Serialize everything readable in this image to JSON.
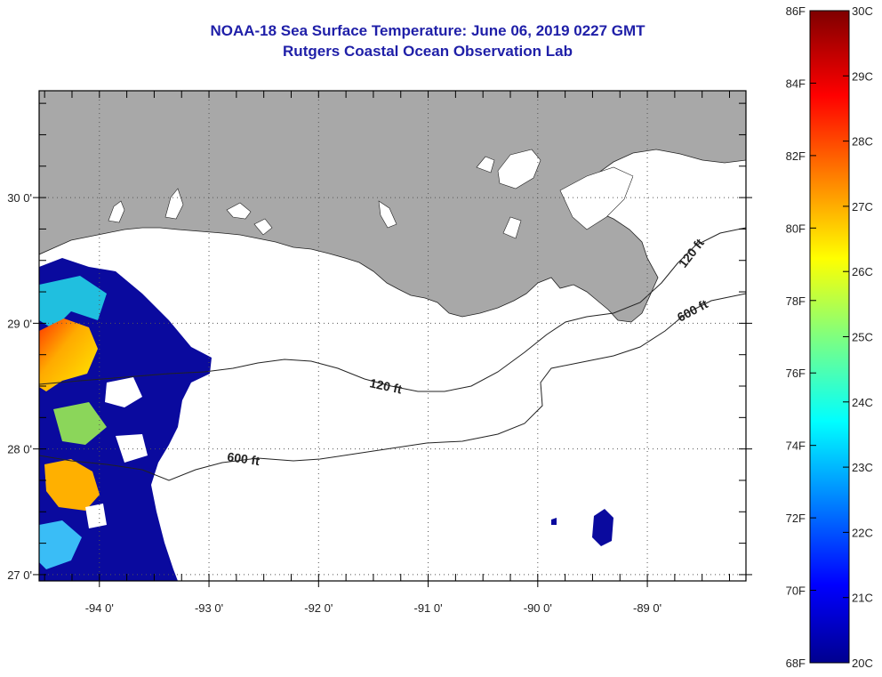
{
  "title": "NOAA-18 Sea Surface Temperature:  June 06, 2019 0227 GMT",
  "subtitle": "Rutgers Coastal Ocean Observation Lab",
  "map": {
    "lat_labels": [
      {
        "text": "30 0'",
        "lat": 30
      },
      {
        "text": "29 0'",
        "lat": 29
      },
      {
        "text": "28 0'",
        "lat": 28
      },
      {
        "text": "27 0'",
        "lat": 27
      }
    ],
    "lon_labels": [
      {
        "text": "-94 0'",
        "lon": -94
      },
      {
        "text": "-93 0'",
        "lon": -93
      },
      {
        "text": "-92 0'",
        "lon": -92
      },
      {
        "text": "-91 0'",
        "lon": -91
      },
      {
        "text": "-90 0'",
        "lon": -90
      },
      {
        "text": "-89 0'",
        "lon": -89
      }
    ],
    "lon_range": [
      -94.55,
      -88.1
    ],
    "lat_range": [
      26.95,
      30.85
    ],
    "grid": "dotted",
    "contours": [
      {
        "label": "120 ft",
        "depth_ft": 120
      },
      {
        "label": "600 ft",
        "depth_ft": 600
      }
    ],
    "colors": {
      "land": "#a8a8a8",
      "ocean_nodata": "#ffffff",
      "title": "#1f1fa8"
    }
  },
  "colorbar": {
    "fahrenheit_labels": [
      "86F",
      "84F",
      "82F",
      "80F",
      "78F",
      "76F",
      "74F",
      "72F",
      "70F",
      "68F"
    ],
    "celsius_labels": [
      "30C",
      "29C",
      "28C",
      "27C",
      "26C",
      "25C",
      "24C",
      "23C",
      "22C",
      "21C",
      "20C"
    ],
    "range_c": [
      20,
      30
    ],
    "range_f": [
      68,
      86
    ]
  }
}
